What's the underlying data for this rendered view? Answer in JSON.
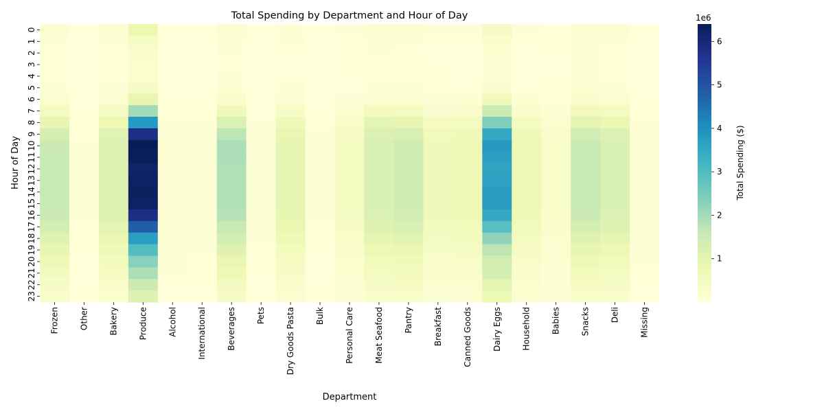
{
  "chart_data": {
    "type": "heatmap",
    "title": "Total Spending by Department and Hour of Day",
    "xlabel": "Department",
    "ylabel": "Hour of Day",
    "colorbar": {
      "label": "Total Spending ($)",
      "colormap": "YlGnBu",
      "min": 0,
      "max": 6400000,
      "ticks": [
        1,
        2,
        3,
        4,
        5,
        6
      ],
      "tick_scale": 1000000,
      "offset_text": "1e6"
    },
    "departments": [
      "Frozen",
      "Other",
      "Bakery",
      "Produce",
      "Alcohol",
      "International",
      "Beverages",
      "Pets",
      "Dry Goods Pasta",
      "Bulk",
      "Personal Care",
      "Meat Seafood",
      "Pantry",
      "Breakfast",
      "Canned Goods",
      "Dairy Eggs",
      "Household",
      "Babies",
      "Snacks",
      "Deli",
      "Missing"
    ],
    "hours": [
      "0",
      "1",
      "2",
      "3",
      "4",
      "5",
      "6",
      "7",
      "8",
      "9",
      "10",
      "11",
      "12",
      "13",
      "14",
      "15",
      "16",
      "17",
      "18",
      "19",
      "20",
      "21",
      "22",
      "23"
    ],
    "values": [
      [
        150000,
        5000,
        150000,
        800000,
        20000,
        15000,
        200000,
        10000,
        120000,
        8000,
        60000,
        170000,
        160000,
        70000,
        90000,
        450000,
        80000,
        40000,
        200000,
        160000,
        20000
      ],
      [
        80000,
        3000,
        80000,
        400000,
        10000,
        8000,
        110000,
        5000,
        70000,
        4000,
        35000,
        100000,
        90000,
        40000,
        50000,
        250000,
        45000,
        20000,
        120000,
        90000,
        10000
      ],
      [
        50000,
        2000,
        50000,
        250000,
        6000,
        5000,
        70000,
        3000,
        40000,
        3000,
        20000,
        60000,
        55000,
        25000,
        30000,
        150000,
        28000,
        12000,
        75000,
        55000,
        6000
      ],
      [
        40000,
        1500,
        40000,
        200000,
        5000,
        4000,
        55000,
        3000,
        30000,
        2000,
        15000,
        45000,
        40000,
        20000,
        25000,
        120000,
        22000,
        10000,
        60000,
        45000,
        5000
      ],
      [
        45000,
        1500,
        45000,
        230000,
        5000,
        4000,
        60000,
        3000,
        35000,
        2000,
        18000,
        50000,
        45000,
        22000,
        28000,
        130000,
        25000,
        12000,
        65000,
        50000,
        5000
      ],
      [
        80000,
        3000,
        70000,
        400000,
        8000,
        6000,
        110000,
        5000,
        60000,
        3000,
        30000,
        90000,
        80000,
        40000,
        45000,
        250000,
        40000,
        20000,
        110000,
        80000,
        8000
      ],
      [
        200000,
        8000,
        180000,
        900000,
        20000,
        15000,
        260000,
        12000,
        150000,
        8000,
        80000,
        230000,
        200000,
        100000,
        110000,
        650000,
        110000,
        50000,
        260000,
        200000,
        20000
      ],
      [
        500000,
        20000,
        450000,
        2000000,
        50000,
        40000,
        650000,
        30000,
        380000,
        20000,
        200000,
        560000,
        500000,
        250000,
        280000,
        1500000,
        280000,
        130000,
        600000,
        500000,
        50000
      ],
      [
        900000,
        40000,
        800000,
        3800000,
        100000,
        80000,
        1200000,
        60000,
        650000,
        40000,
        350000,
        1000000,
        900000,
        450000,
        500000,
        2400000,
        500000,
        230000,
        1000000,
        850000,
        90000
      ],
      [
        1300000,
        50000,
        1050000,
        5800000,
        130000,
        110000,
        1700000,
        80000,
        850000,
        60000,
        450000,
        1200000,
        1250000,
        600000,
        680000,
        3500000,
        650000,
        300000,
        1400000,
        1150000,
        120000
      ],
      [
        1500000,
        60000,
        1150000,
        6400000,
        150000,
        120000,
        1900000,
        90000,
        950000,
        60000,
        480000,
        1250000,
        1450000,
        650000,
        720000,
        3800000,
        700000,
        330000,
        1550000,
        1250000,
        130000
      ],
      [
        1550000,
        60000,
        1150000,
        6350000,
        150000,
        120000,
        1900000,
        90000,
        950000,
        60000,
        480000,
        1250000,
        1450000,
        650000,
        720000,
        3700000,
        700000,
        330000,
        1550000,
        1250000,
        130000
      ],
      [
        1550000,
        60000,
        1150000,
        6200000,
        150000,
        120000,
        1850000,
        90000,
        950000,
        60000,
        480000,
        1250000,
        1450000,
        650000,
        720000,
        3600000,
        700000,
        330000,
        1550000,
        1250000,
        130000
      ],
      [
        1550000,
        60000,
        1150000,
        6250000,
        150000,
        120000,
        1850000,
        90000,
        950000,
        60000,
        480000,
        1250000,
        1450000,
        650000,
        720000,
        3650000,
        700000,
        330000,
        1550000,
        1250000,
        130000
      ],
      [
        1550000,
        60000,
        1150000,
        6300000,
        150000,
        120000,
        1850000,
        90000,
        950000,
        60000,
        480000,
        1250000,
        1450000,
        650000,
        720000,
        3750000,
        700000,
        330000,
        1550000,
        1250000,
        130000
      ],
      [
        1550000,
        60000,
        1150000,
        6250000,
        150000,
        120000,
        1850000,
        90000,
        950000,
        60000,
        480000,
        1250000,
        1450000,
        650000,
        720000,
        3750000,
        700000,
        330000,
        1550000,
        1250000,
        130000
      ],
      [
        1500000,
        60000,
        1100000,
        5800000,
        140000,
        110000,
        1800000,
        85000,
        920000,
        60000,
        470000,
        1200000,
        1400000,
        630000,
        700000,
        3500000,
        680000,
        320000,
        1500000,
        1200000,
        125000
      ],
      [
        1350000,
        55000,
        1000000,
        4800000,
        130000,
        100000,
        1600000,
        80000,
        850000,
        50000,
        420000,
        1100000,
        1250000,
        560000,
        620000,
        2900000,
        600000,
        280000,
        1300000,
        1100000,
        110000
      ],
      [
        1100000,
        45000,
        850000,
        3700000,
        110000,
        80000,
        1350000,
        70000,
        700000,
        40000,
        350000,
        950000,
        1050000,
        470000,
        520000,
        2200000,
        500000,
        230000,
        1100000,
        950000,
        95000
      ],
      [
        900000,
        35000,
        700000,
        3000000,
        90000,
        70000,
        1100000,
        55000,
        580000,
        35000,
        290000,
        780000,
        850000,
        380000,
        430000,
        1700000,
        420000,
        190000,
        900000,
        780000,
        80000
      ],
      [
        700000,
        30000,
        550000,
        2300000,
        70000,
        55000,
        850000,
        45000,
        450000,
        30000,
        230000,
        620000,
        680000,
        300000,
        340000,
        1400000,
        330000,
        150000,
        720000,
        620000,
        60000
      ],
      [
        550000,
        25000,
        450000,
        1900000,
        60000,
        45000,
        700000,
        35000,
        370000,
        25000,
        190000,
        500000,
        550000,
        250000,
        280000,
        1300000,
        270000,
        120000,
        580000,
        500000,
        50000
      ],
      [
        400000,
        18000,
        330000,
        1500000,
        45000,
        35000,
        520000,
        26000,
        270000,
        18000,
        140000,
        380000,
        420000,
        190000,
        210000,
        1000000,
        200000,
        90000,
        450000,
        380000,
        38000
      ],
      [
        280000,
        12000,
        230000,
        1100000,
        30000,
        24000,
        360000,
        18000,
        190000,
        12000,
        100000,
        260000,
        290000,
        130000,
        150000,
        700000,
        140000,
        60000,
        310000,
        260000,
        26000
      ]
    ]
  }
}
